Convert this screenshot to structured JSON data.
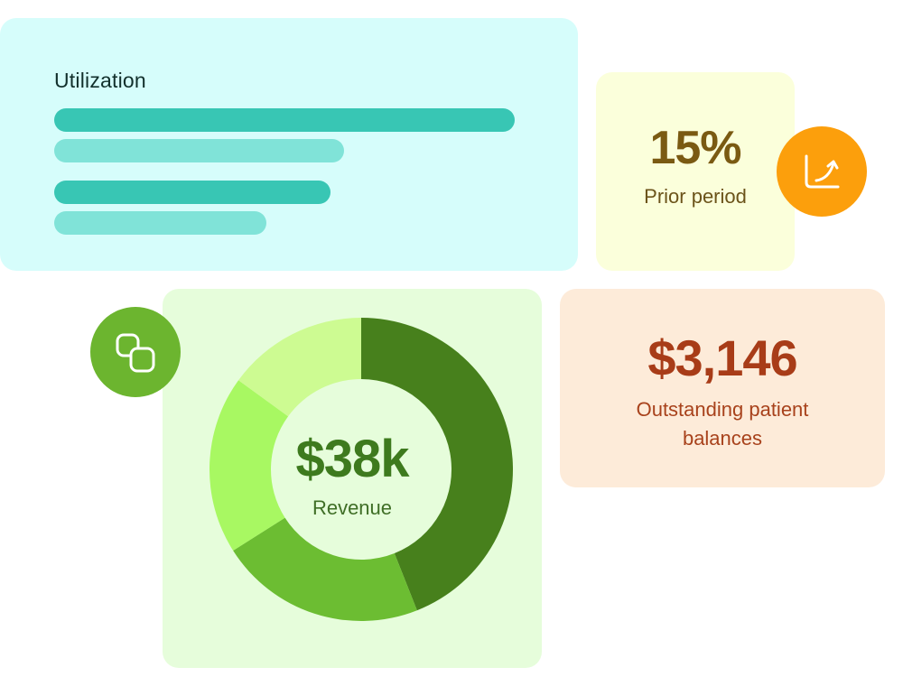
{
  "utilization": {
    "title": "Utilization",
    "colors": {
      "primary": "#38c6b4",
      "secondary": "#80e3d8"
    }
  },
  "prior_period": {
    "value": "15%",
    "label": "Prior period",
    "icon": "trend-chart-icon",
    "badge_color": "#fc9f0c"
  },
  "revenue": {
    "value": "$38k",
    "label": "Revenue",
    "icon": "copy-icon",
    "badge_color": "#6cb52f"
  },
  "outstanding": {
    "value": "$3,146",
    "label": "Outstanding patient balances"
  },
  "chart_data": [
    {
      "type": "bar",
      "orientation": "horizontal",
      "title": "Utilization",
      "categories": [
        "",
        ""
      ],
      "series": [
        {
          "values": [
            100,
            60
          ],
          "color": "#38c6b4"
        },
        {
          "values": [
            63,
            46
          ],
          "color": "#80e3d8"
        }
      ],
      "xlim": [
        0,
        100
      ],
      "grid": false,
      "legend": "none"
    },
    {
      "type": "pie",
      "donut": true,
      "center_text": "$38k",
      "center_label": "Revenue",
      "values": [
        44,
        22,
        19,
        15
      ],
      "colors": [
        "#47801c",
        "#6cbd32",
        "#a8f862",
        "#cdfb92"
      ]
    }
  ]
}
